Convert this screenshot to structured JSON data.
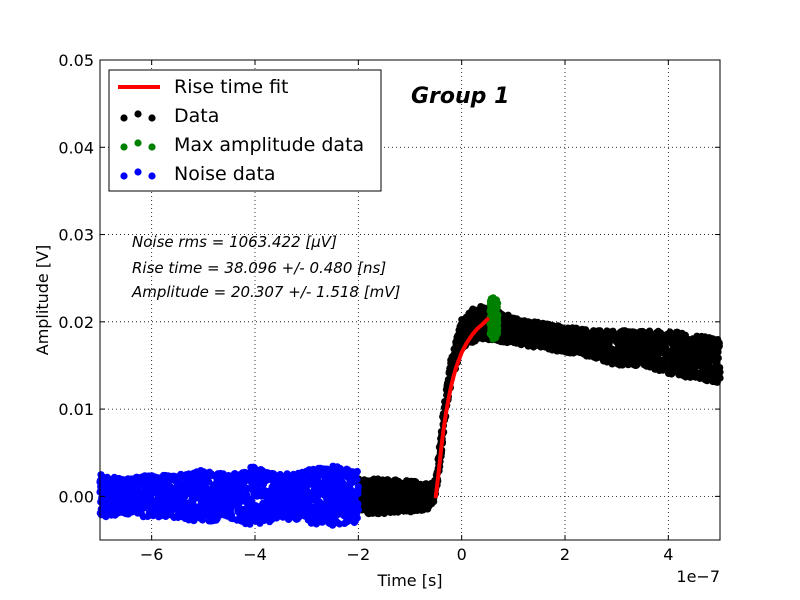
{
  "chart_data": {
    "type": "scatter",
    "title": "",
    "xlabel": "Time [s]",
    "ylabel": "Amplitude [V]",
    "x_offset_label": "1e−7",
    "xlim": [
      -7e-07,
      5e-07
    ],
    "ylim": [
      -0.005,
      0.05
    ],
    "x_ticks": [
      -6e-07,
      -4e-07,
      -2e-07,
      0,
      2e-07,
      4e-07
    ],
    "x_tick_labels": [
      "−6",
      "−4",
      "−2",
      "0",
      "2",
      "4"
    ],
    "y_ticks": [
      0.0,
      0.01,
      0.02,
      0.03,
      0.04,
      0.05
    ],
    "y_tick_labels": [
      "0.00",
      "0.01",
      "0.02",
      "0.03",
      "0.04",
      "0.05"
    ],
    "grid": true,
    "legend_position": "top-left",
    "legend": [
      {
        "label": "Rise time fit",
        "kind": "line",
        "color": "#ff0000"
      },
      {
        "label": "Data",
        "kind": "dots",
        "color": "#000000"
      },
      {
        "label": "Max amplitude data",
        "kind": "dots",
        "color": "#008000"
      },
      {
        "label": "Noise data",
        "kind": "dots",
        "color": "#0000ff"
      }
    ],
    "group_label": "Group 1",
    "annotations": [
      "Noise rms = 1063.422 [μV]",
      "Rise time = 38.096 +/- 0.480 [ns]",
      "Amplitude = 20.307 +/- 1.518 [mV]"
    ],
    "series": [
      {
        "name": "Noise data",
        "color": "#0000ff",
        "x": [
          -7e-07,
          -6.5e-07,
          -6e-07,
          -5.5e-07,
          -5e-07,
          -4.5e-07,
          -4e-07,
          -3.5e-07,
          -3e-07,
          -2.5e-07,
          -2e-07
        ],
        "y": [
          0.0,
          0.0,
          0.0,
          0.0,
          0.0,
          0.0,
          0.0,
          0.0,
          0.0,
          0.0,
          0.0
        ],
        "band": [
          0.0025,
          0.002,
          0.0025,
          0.0025,
          0.003,
          0.0025,
          0.0035,
          0.0025,
          0.003,
          0.0035,
          0.003
        ]
      },
      {
        "name": "Data",
        "color": "#000000",
        "x": [
          -2e-07,
          -1.5e-07,
          -1e-07,
          -6e-08,
          -5e-08,
          -4e-08,
          -3e-08,
          -2e-08,
          -1e-08,
          0.0,
          1e-08,
          2e-08,
          3e-08,
          5e-08,
          7e-08,
          1e-07,
          1.5e-07,
          2e-07,
          2.5e-07,
          3e-07,
          3.5e-07,
          4e-07,
          4.5e-07,
          5e-07
        ],
        "y": [
          0.0,
          0.0,
          0.0,
          0.0,
          0.001,
          0.006,
          0.011,
          0.0145,
          0.0165,
          0.0185,
          0.019,
          0.0195,
          0.02,
          0.02,
          0.0195,
          0.019,
          0.0185,
          0.018,
          0.0175,
          0.017,
          0.017,
          0.0165,
          0.016,
          0.0155
        ],
        "band": [
          0.002,
          0.002,
          0.0018,
          0.0015,
          0.001,
          0.0015,
          0.0015,
          0.0015,
          0.0015,
          0.0018,
          0.0018,
          0.002,
          0.002,
          0.002,
          0.0018,
          0.0015,
          0.0015,
          0.0015,
          0.0015,
          0.002,
          0.002,
          0.0025,
          0.0025,
          0.0025
        ]
      },
      {
        "name": "Max amplitude data",
        "color": "#008000",
        "x": [
          5.5e-08,
          6e-08,
          6.5e-08,
          7e-08
        ],
        "y": [
          0.0205,
          0.0205,
          0.0205,
          0.0205
        ],
        "band": [
          0.002,
          0.0025,
          0.0025,
          0.002
        ]
      },
      {
        "name": "Rise time fit",
        "color": "#ff0000",
        "x": [
          -5e-08,
          -4.5e-08,
          -4e-08,
          -3.5e-08,
          -3e-08,
          -2.5e-08,
          -2e-08,
          -1.5e-08,
          -1e-08,
          -5e-09,
          0,
          1e-08,
          2e-08,
          3e-08,
          4e-08,
          5e-08
        ],
        "y": [
          0.0,
          0.0025,
          0.0053,
          0.0077,
          0.0097,
          0.0113,
          0.0127,
          0.0139,
          0.0149,
          0.0157,
          0.0165,
          0.0176,
          0.0185,
          0.0192,
          0.0197,
          0.0203
        ]
      }
    ]
  }
}
